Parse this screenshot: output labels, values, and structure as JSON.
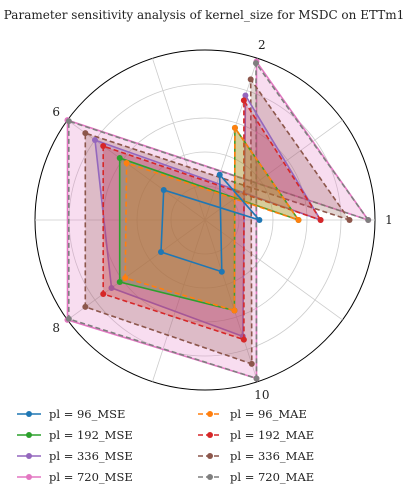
{
  "chart_data": {
    "type": "radar",
    "title": "Parameter sensitivity analysis of kernel_size for MSDC on ETTm1",
    "axes": [
      "1",
      "2",
      "10",
      "8",
      "6"
    ],
    "rmax": 1.0,
    "grid": true,
    "legend_position": "bottom",
    "series": [
      {
        "name": "pl = 96_MSE",
        "color": "#1f77b4",
        "style": "solid",
        "fill": false,
        "values": [
          0.32,
          0.28,
          0.32,
          0.32,
          0.3
        ]
      },
      {
        "name": "pl = 96_MAE",
        "color": "#ff7f0e",
        "style": "dashed",
        "fill": true,
        "values": [
          0.55,
          0.57,
          0.56,
          0.58,
          0.57
        ]
      },
      {
        "name": "pl = 192_MSE",
        "color": "#2ca02c",
        "style": "solid",
        "fill": true,
        "values": [
          0.55,
          0.57,
          0.56,
          0.62,
          0.62
        ]
      },
      {
        "name": "pl = 192_MAE",
        "color": "#d62728",
        "style": "dashed",
        "fill": true,
        "values": [
          0.68,
          0.74,
          0.74,
          0.74,
          0.74
        ]
      },
      {
        "name": "pl = 336_MSE",
        "color": "#9467bd",
        "style": "solid",
        "fill": true,
        "values": [
          0.68,
          0.77,
          0.72,
          0.68,
          0.8
        ]
      },
      {
        "name": "pl = 336_MAE",
        "color": "#8c564b",
        "style": "dashed",
        "fill": true,
        "values": [
          0.85,
          0.87,
          0.89,
          0.87,
          0.87
        ]
      },
      {
        "name": "pl = 720_MSE",
        "color": "#e377c2",
        "style": "solid",
        "fill": true,
        "values": [
          0.96,
          0.98,
          0.98,
          1.0,
          1.0
        ]
      },
      {
        "name": "pl = 720_MAE",
        "color": "#7f7f7f",
        "style": "dashed",
        "fill": false,
        "values": [
          0.96,
          0.97,
          0.98,
          0.99,
          0.99
        ]
      }
    ]
  }
}
